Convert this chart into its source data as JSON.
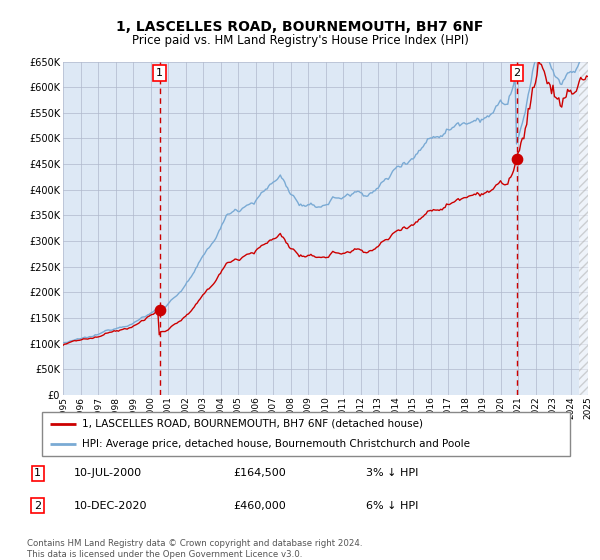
{
  "title": "1, LASCELLES ROAD, BOURNEMOUTH, BH7 6NF",
  "subtitle": "Price paid vs. HM Land Registry's House Price Index (HPI)",
  "legend_line1": "1, LASCELLES ROAD, BOURNEMOUTH, BH7 6NF (detached house)",
  "legend_line2": "HPI: Average price, detached house, Bournemouth Christchurch and Poole",
  "annotation1_date": "10-JUL-2000",
  "annotation1_price": "£164,500",
  "annotation1_hpi": "3% ↓ HPI",
  "annotation2_date": "10-DEC-2020",
  "annotation2_price": "£460,000",
  "annotation2_hpi": "6% ↓ HPI",
  "footer": "Contains HM Land Registry data © Crown copyright and database right 2024.\nThis data is licensed under the Open Government Licence v3.0.",
  "hpi_color": "#7aaad4",
  "price_color": "#cc0000",
  "dot_color": "#cc0000",
  "background_color": "#dde8f5",
  "ylim": [
    0,
    650000
  ],
  "yticks": [
    0,
    50000,
    100000,
    150000,
    200000,
    250000,
    300000,
    350000,
    400000,
    450000,
    500000,
    550000,
    600000,
    650000
  ],
  "ytick_labels": [
    "£0",
    "£50K",
    "£100K",
    "£150K",
    "£200K",
    "£250K",
    "£300K",
    "£350K",
    "£400K",
    "£450K",
    "£500K",
    "£550K",
    "£600K",
    "£650K"
  ],
  "xstart": 1995,
  "xend": 2025,
  "xticks": [
    1995,
    1996,
    1997,
    1998,
    1999,
    2000,
    2001,
    2002,
    2003,
    2004,
    2005,
    2006,
    2007,
    2008,
    2009,
    2010,
    2011,
    2012,
    2013,
    2014,
    2015,
    2016,
    2017,
    2018,
    2019,
    2020,
    2021,
    2022,
    2023,
    2024,
    2025
  ],
  "sale1_x": 2000.52,
  "sale1_y": 164500,
  "sale2_x": 2020.94,
  "sale2_y": 460000,
  "hatch_start": 2024.5
}
